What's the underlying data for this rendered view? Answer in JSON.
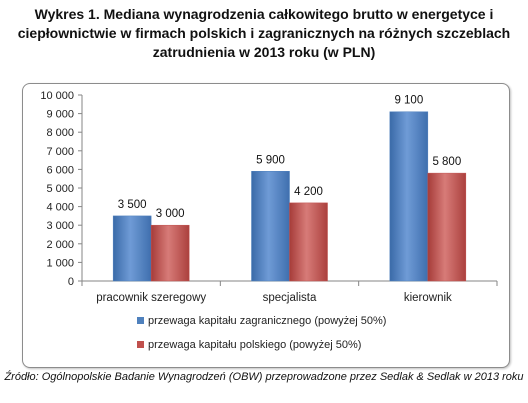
{
  "title": "Wykres 1. Mediana wynagrodzenia całkowitego brutto w energetyce i ciepłownictwie w firmach polskich i zagranicznych na różnych szczeblach zatrudnienia w 2013 roku (w PLN)",
  "source": "Źródło: Ogólnopolskie Badanie Wynagrodzeń (OBW) przeprowadzone przez Sedlak & Sedlak w 2013 roku",
  "colors": {
    "series1": "#4f81bd",
    "series2": "#c0504d"
  },
  "chart_data": {
    "type": "bar",
    "categories": [
      "pracownik szeregowy",
      "specjalista",
      "kierownik"
    ],
    "series": [
      {
        "name": "przewaga kapitału zagranicznego (powyżej 50%)",
        "values": [
          3500,
          5900,
          9100
        ],
        "labels": [
          "3 500",
          "5 900",
          "9 100"
        ]
      },
      {
        "name": "przewaga kapitału polskiego (powyżej 50%)",
        "values": [
          3000,
          4200,
          5800
        ],
        "labels": [
          "3 000",
          "4 200",
          "5 800"
        ]
      }
    ],
    "ylim": [
      0,
      10000
    ],
    "yticks": [
      "0",
      "1 000",
      "2 000",
      "3 000",
      "4 000",
      "5 000",
      "6 000",
      "7 000",
      "8 000",
      "9 000",
      "10 000"
    ],
    "grid": false,
    "legend_position": "bottom"
  }
}
